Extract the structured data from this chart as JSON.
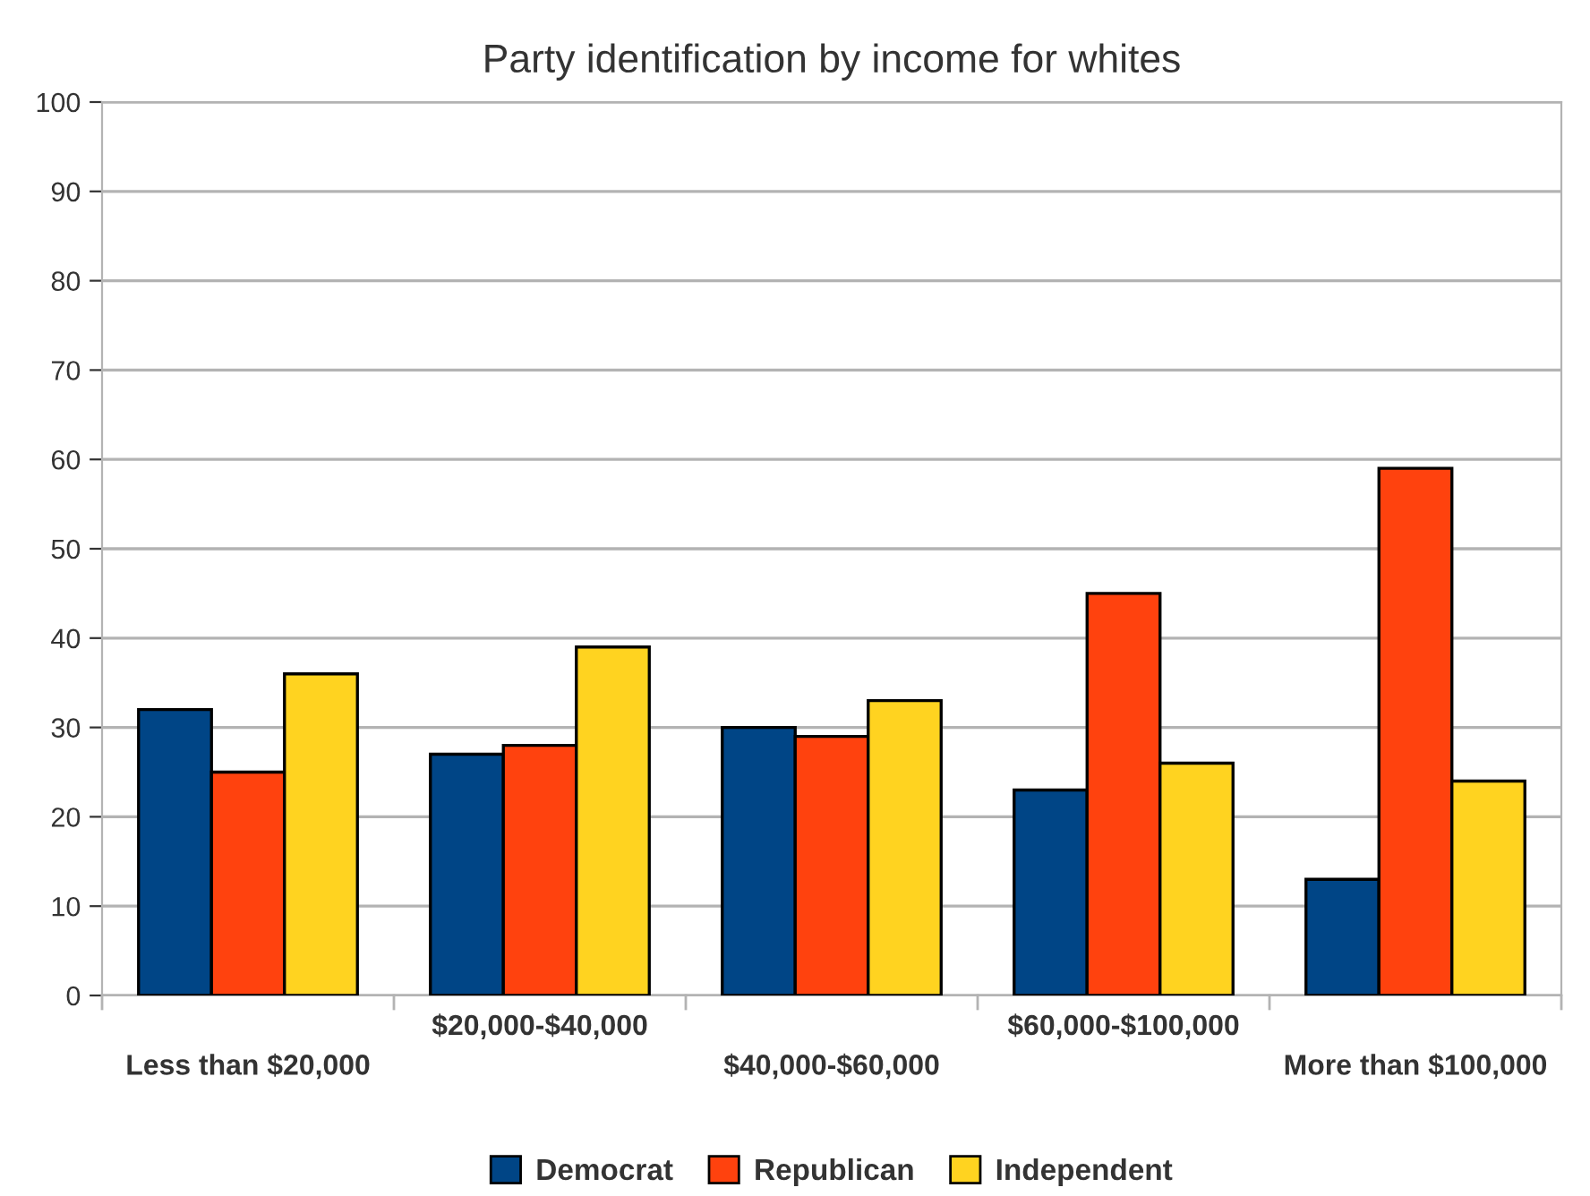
{
  "chart_data": {
    "type": "bar",
    "title": "Party identification by income for whites",
    "categories": [
      "Less than $20,000",
      "$20,000-$40,000",
      "$40,000-$60,000",
      "$60,000-$100,000",
      "More than $100,000"
    ],
    "series": [
      {
        "name": "Democrat",
        "color": "#004586",
        "values": [
          32,
          27,
          30,
          23,
          13
        ]
      },
      {
        "name": "Republican",
        "color": "#ff420e",
        "values": [
          25,
          28,
          29,
          45,
          59
        ]
      },
      {
        "name": "Independent",
        "color": "#ffd320",
        "values": [
          36,
          39,
          33,
          26,
          24
        ]
      }
    ],
    "ylim": [
      0,
      100
    ],
    "yticks": [
      0,
      10,
      20,
      30,
      40,
      50,
      60,
      70,
      80,
      90,
      100
    ],
    "grid": "y",
    "legend": "bottom"
  }
}
